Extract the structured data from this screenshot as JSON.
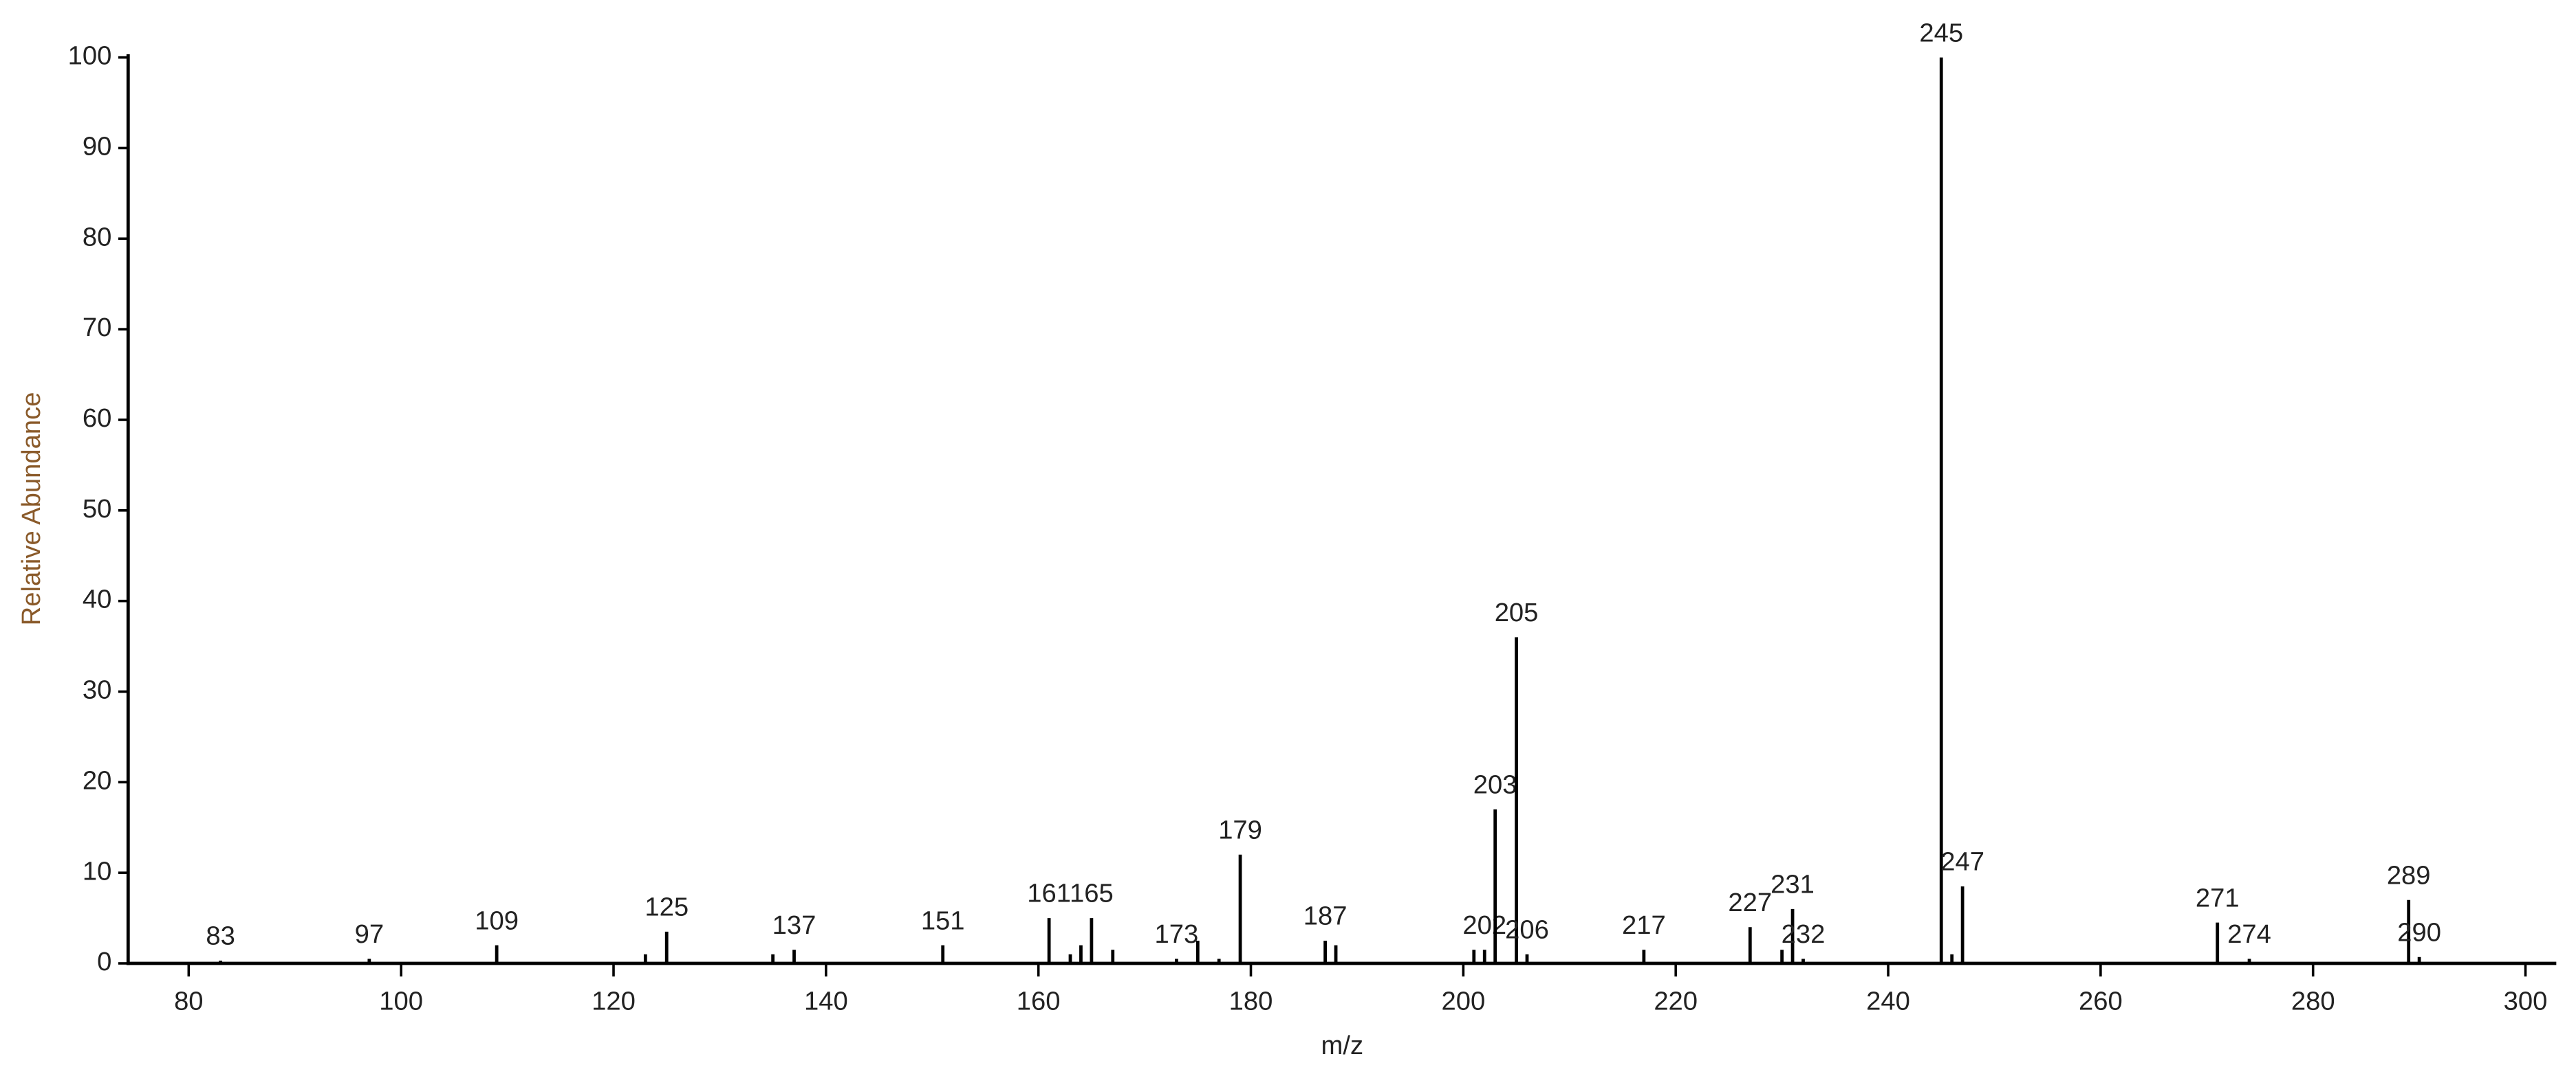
{
  "chart_data": {
    "type": "stem",
    "x_label": "m/z",
    "y_label": "Relative Abundance",
    "x": [
      83,
      97,
      109,
      125,
      137,
      151,
      161,
      165,
      173,
      179,
      187,
      202,
      203,
      205,
      206,
      217,
      227,
      231,
      232,
      245,
      247,
      271,
      274,
      289,
      290
    ],
    "values": [
      0.3,
      0.5,
      2,
      3.5,
      1.5,
      2,
      5,
      5,
      0.5,
      12,
      2.5,
      1.5,
      17,
      36,
      1,
      1.5,
      4,
      6,
      0.5,
      100,
      8.5,
      4.5,
      0.5,
      7,
      0.7
    ],
    "minor_peaks": {
      "x": [
        123,
        135,
        163,
        164,
        167,
        175,
        177,
        188,
        201,
        230,
        246
      ],
      "values": [
        1,
        1,
        1,
        2,
        1.5,
        2.5,
        0.5,
        2,
        1.5,
        1.5,
        1
      ]
    },
    "color": "#000000",
    "xlim": [
      74.3,
      302.9
    ],
    "xticks": [
      80,
      100,
      120,
      140,
      160,
      180,
      200,
      220,
      240,
      260,
      280,
      300
    ],
    "ylim": [
      0,
      100
    ],
    "yticks": [
      0,
      10,
      20,
      30,
      40,
      50,
      60,
      70,
      80,
      90,
      100
    ]
  }
}
